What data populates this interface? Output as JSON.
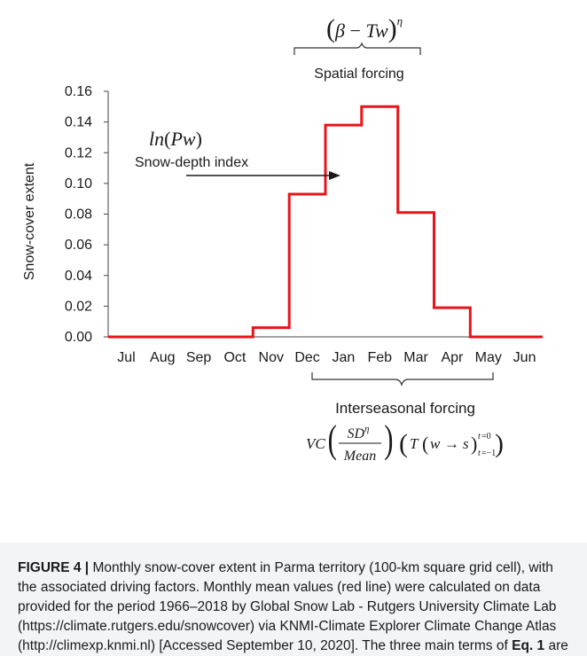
{
  "chart_data": {
    "type": "line",
    "style": "step",
    "categories": [
      "Jul",
      "Aug",
      "Sep",
      "Oct",
      "Nov",
      "Dec",
      "Jan",
      "Feb",
      "Mar",
      "Apr",
      "May",
      "Jun"
    ],
    "values": [
      0.0,
      0.0,
      0.0,
      0.0,
      0.006,
      0.093,
      0.138,
      0.15,
      0.081,
      0.019,
      0.0,
      0.0
    ],
    "ylabel": "Snow-cover extent",
    "ylim": [
      0,
      0.16
    ],
    "yticks": [
      "0.00",
      "0.02",
      "0.04",
      "0.06",
      "0.08",
      "0.10",
      "0.12",
      "0.14",
      "0.16"
    ],
    "grid": false,
    "line_color": "#e8141b",
    "annotations": {
      "top": {
        "formula": "(β − Tw)^η",
        "label": "Spatial forcing"
      },
      "arrow": {
        "formula": "ln(Pw)",
        "label": "Snow-depth index"
      },
      "bottom": {
        "label": "Interseasonal forcing",
        "formula": "VC(SD^η/Mean)(T(w→s))_{t=−1}^{t=0}"
      }
    }
  },
  "caption": {
    "label": "FIGURE 4 |",
    "text": " Monthly snow-cover extent in Parma territory (100-km square grid cell), with the associated driving factors. Monthly mean values (red line) were calculated on data provided for the period 1966–2018 by Global Snow Lab - Rutgers University Climate Lab (https://climate.rutgers.edu/snowcover) via KNMI-Climate Explorer Climate Change Atlas (http://climexp.knmi.nl) [Accessed September 10, 2020]. The three main terms of ",
    "eq_ref": "Eq. 1",
    "text_end": " are reported."
  }
}
